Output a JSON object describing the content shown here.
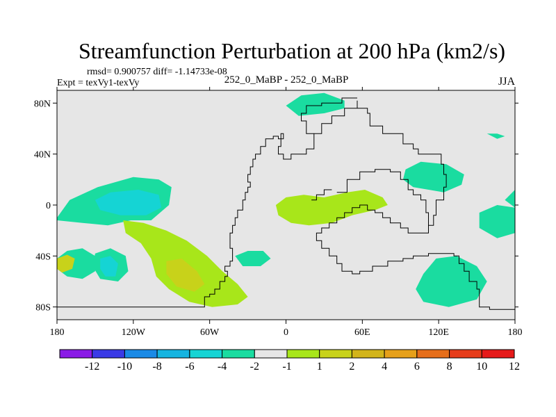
{
  "chart_data": {
    "type": "contour-map",
    "title": "Streamfunction Perturbation at 200 hPa (km2/s)",
    "stats": "rmsd= 0.900757 diff= -1.14733e-08",
    "experiment": "Expt = texVy1-texVy",
    "subtitle": "252_0_MaBP - 252_0_MaBP",
    "season": "JJA",
    "x_axis": {
      "range": [
        -180,
        180
      ],
      "ticks": [
        {
          "value": -180,
          "label": "180"
        },
        {
          "value": -120,
          "label": "120W"
        },
        {
          "value": -60,
          "label": "60W"
        },
        {
          "value": 0,
          "label": "0"
        },
        {
          "value": 60,
          "label": "60E"
        },
        {
          "value": 120,
          "label": "120E"
        },
        {
          "value": 180,
          "label": "180"
        }
      ]
    },
    "y_axis": {
      "range": [
        -90,
        90
      ],
      "ticks": [
        {
          "value": 80,
          "label": "80N"
        },
        {
          "value": 40,
          "label": "40N"
        },
        {
          "value": 0,
          "label": "0"
        },
        {
          "value": -40,
          "label": "40S"
        },
        {
          "value": -80,
          "label": "80S"
        }
      ]
    },
    "colorbar": {
      "colors": [
        "#8a1ae6",
        "#3a3ae6",
        "#1a8ae6",
        "#15b4e0",
        "#15d4d4",
        "#1adca0",
        "#e6e6e6",
        "#a8e61a",
        "#c8d21a",
        "#d2b41a",
        "#e6a01a",
        "#e66e1a",
        "#e63c1a",
        "#e61a1a"
      ],
      "labels": [
        "-12",
        "-10",
        "-8",
        "-6",
        "-4",
        "-2",
        "-1",
        "1",
        "2",
        "4",
        "6",
        "8",
        "10",
        "12"
      ]
    },
    "regions": [
      {
        "name": "sw-pacific-positive",
        "color": "#1adca0",
        "points": [
          [
            -180,
            -42
          ],
          [
            -172,
            -36
          ],
          [
            -160,
            -34
          ],
          [
            -150,
            -40
          ],
          [
            -150,
            -52
          ],
          [
            -160,
            -58
          ],
          [
            -172,
            -56
          ],
          [
            -180,
            -50
          ]
        ]
      },
      {
        "name": "sw-pacific-core",
        "color": "#c8d21a",
        "points": [
          [
            -180,
            -42
          ],
          [
            -172,
            -39
          ],
          [
            -166,
            -42
          ],
          [
            -168,
            -50
          ],
          [
            -176,
            -53
          ],
          [
            -180,
            -50
          ]
        ]
      },
      {
        "name": "south-pacific-trough",
        "color": "#1adca0",
        "points": [
          [
            -150,
            -38
          ],
          [
            -138,
            -34
          ],
          [
            -126,
            -40
          ],
          [
            -124,
            -52
          ],
          [
            -132,
            -60
          ],
          [
            -146,
            -58
          ],
          [
            -152,
            -48
          ]
        ]
      },
      {
        "name": "south-pacific-trough-core",
        "color": "#15d4d4",
        "points": [
          [
            -146,
            -42
          ],
          [
            -138,
            -40
          ],
          [
            -132,
            -46
          ],
          [
            -134,
            -56
          ],
          [
            -142,
            -56
          ],
          [
            -146,
            -50
          ]
        ]
      },
      {
        "name": "equatorial-pacific-band",
        "color": "#1adca0",
        "points": [
          [
            -180,
            -10
          ],
          [
            -170,
            4
          ],
          [
            -148,
            14
          ],
          [
            -120,
            22
          ],
          [
            -100,
            20
          ],
          [
            -90,
            14
          ],
          [
            -92,
            0
          ],
          [
            -106,
            -12
          ],
          [
            -122,
            -12
          ],
          [
            -140,
            -16
          ],
          [
            -160,
            -14
          ],
          [
            -180,
            -12
          ]
        ]
      },
      {
        "name": "equatorial-pacific-core",
        "color": "#15d4d4",
        "points": [
          [
            -150,
            4
          ],
          [
            -138,
            10
          ],
          [
            -116,
            12
          ],
          [
            -100,
            8
          ],
          [
            -98,
            -2
          ],
          [
            -110,
            -8
          ],
          [
            -130,
            -8
          ],
          [
            -146,
            -4
          ]
        ]
      },
      {
        "name": "south-america-ridge",
        "color": "#a8e61a",
        "points": [
          [
            -128,
            -12
          ],
          [
            -112,
            -14
          ],
          [
            -94,
            -20
          ],
          [
            -78,
            -28
          ],
          [
            -62,
            -40
          ],
          [
            -50,
            -52
          ],
          [
            -38,
            -62
          ],
          [
            -30,
            -72
          ],
          [
            -38,
            -78
          ],
          [
            -58,
            -80
          ],
          [
            -76,
            -76
          ],
          [
            -92,
            -66
          ],
          [
            -102,
            -56
          ],
          [
            -106,
            -42
          ],
          [
            -114,
            -30
          ],
          [
            -126,
            -22
          ]
        ]
      },
      {
        "name": "south-america-core",
        "color": "#c8d21a",
        "points": [
          [
            -94,
            -44
          ],
          [
            -82,
            -42
          ],
          [
            -70,
            -52
          ],
          [
            -64,
            -62
          ],
          [
            -72,
            -68
          ],
          [
            -86,
            -64
          ],
          [
            -94,
            -54
          ]
        ]
      },
      {
        "name": "south-atlantic-low",
        "color": "#1adca0",
        "points": [
          [
            -40,
            -40
          ],
          [
            -30,
            -36
          ],
          [
            -18,
            -36
          ],
          [
            -12,
            -42
          ],
          [
            -20,
            -48
          ],
          [
            -34,
            -48
          ]
        ]
      },
      {
        "name": "africa-ridge",
        "color": "#a8e61a",
        "points": [
          [
            -8,
            0
          ],
          [
            0,
            6
          ],
          [
            14,
            8
          ],
          [
            30,
            6
          ],
          [
            48,
            10
          ],
          [
            62,
            12
          ],
          [
            76,
            6
          ],
          [
            80,
            0
          ],
          [
            70,
            -4
          ],
          [
            52,
            -8
          ],
          [
            36,
            -14
          ],
          [
            18,
            -16
          ],
          [
            4,
            -14
          ],
          [
            -6,
            -8
          ]
        ]
      },
      {
        "name": "arctic-trough",
        "color": "#1adca0",
        "points": [
          [
            0,
            78
          ],
          [
            12,
            86
          ],
          [
            30,
            88
          ],
          [
            46,
            82
          ],
          [
            46,
            76
          ],
          [
            30,
            72
          ],
          [
            10,
            70
          ]
        ]
      },
      {
        "name": "asia-trough",
        "color": "#1adca0",
        "points": [
          [
            94,
            28
          ],
          [
            106,
            34
          ],
          [
            126,
            32
          ],
          [
            140,
            24
          ],
          [
            138,
            16
          ],
          [
            124,
            10
          ],
          [
            100,
            14
          ],
          [
            92,
            20
          ]
        ]
      },
      {
        "name": "west-pacific-trough",
        "color": "#1adca0",
        "points": [
          [
            152,
            -6
          ],
          [
            166,
            0
          ],
          [
            180,
            -2
          ],
          [
            180,
            -22
          ],
          [
            166,
            -26
          ],
          [
            152,
            -18
          ]
        ]
      },
      {
        "name": "east-pacific-edge",
        "color": "#1adca0",
        "points": [
          [
            172,
            4
          ],
          [
            180,
            12
          ],
          [
            180,
            -2
          ]
        ]
      },
      {
        "name": "australia-trough",
        "color": "#1adca0",
        "points": [
          [
            108,
            -54
          ],
          [
            118,
            -42
          ],
          [
            134,
            -40
          ],
          [
            150,
            -48
          ],
          [
            158,
            -60
          ],
          [
            150,
            -74
          ],
          [
            128,
            -80
          ],
          [
            108,
            -76
          ],
          [
            102,
            -66
          ]
        ]
      },
      {
        "name": "kamchatka-sliver",
        "color": "#1adca0",
        "points": [
          [
            158,
            56
          ],
          [
            166,
            56
          ],
          [
            172,
            54
          ],
          [
            166,
            52
          ]
        ]
      },
      {
        "name": "equatorial-thin-sliver",
        "color": "#1adca0",
        "points": [
          [
            -118,
            -18
          ],
          [
            -108,
            -20
          ],
          [
            -98,
            -22
          ],
          [
            -108,
            -20
          ]
        ]
      }
    ],
    "outline_paths": [
      [
        [
          -180,
          -80
        ],
        [
          -65,
          -80
        ],
        [
          -64,
          -72
        ],
        [
          -60,
          -70
        ],
        [
          -56,
          -66
        ],
        [
          -52,
          -60
        ],
        [
          -48,
          -56
        ],
        [
          -46,
          -52
        ],
        [
          -48,
          -48
        ],
        [
          -44,
          -44
        ],
        [
          -42,
          -40
        ],
        [
          -42,
          -34
        ],
        [
          -44,
          -28
        ],
        [
          -44,
          -22
        ],
        [
          -42,
          -16
        ],
        [
          -40,
          -10
        ],
        [
          -38,
          -4
        ],
        [
          -34,
          0
        ],
        [
          -34,
          4
        ],
        [
          -32,
          10
        ],
        [
          -30,
          14
        ],
        [
          -28,
          18
        ],
        [
          -30,
          24
        ],
        [
          -28,
          30
        ],
        [
          -26,
          36
        ],
        [
          -24,
          40
        ],
        [
          -20,
          46
        ],
        [
          -16,
          52
        ],
        [
          -10,
          54
        ],
        [
          -6,
          52
        ],
        [
          -4,
          56
        ],
        [
          -2,
          52
        ],
        [
          -4,
          46
        ],
        [
          -6,
          40
        ],
        [
          -2,
          36
        ],
        [
          4,
          40
        ],
        [
          10,
          40
        ],
        [
          16,
          44
        ],
        [
          22,
          56
        ],
        [
          28,
          64
        ],
        [
          36,
          70
        ],
        [
          46,
          76
        ],
        [
          56,
          82
        ],
        [
          56,
          76
        ],
        [
          64,
          72
        ],
        [
          66,
          62
        ],
        [
          76,
          56
        ],
        [
          92,
          48
        ],
        [
          100,
          44
        ],
        [
          104,
          40
        ],
        [
          114,
          40
        ],
        [
          122,
          32
        ],
        [
          124,
          24
        ],
        [
          126,
          14
        ],
        [
          124,
          4
        ],
        [
          118,
          -8
        ],
        [
          116,
          -16
        ],
        [
          112,
          -22
        ],
        [
          104,
          -22
        ],
        [
          96,
          -18
        ],
        [
          90,
          -14
        ],
        [
          82,
          -10
        ],
        [
          76,
          -6
        ],
        [
          70,
          -4
        ],
        [
          64,
          0
        ],
        [
          58,
          -2
        ],
        [
          52,
          -6
        ],
        [
          46,
          -10
        ],
        [
          40,
          -14
        ],
        [
          34,
          -18
        ],
        [
          28,
          -22
        ],
        [
          24,
          -28
        ],
        [
          28,
          -34
        ],
        [
          34,
          -40
        ],
        [
          40,
          -46
        ],
        [
          44,
          -52
        ],
        [
          52,
          -54
        ],
        [
          58,
          -52
        ],
        [
          68,
          -48
        ],
        [
          80,
          -44
        ],
        [
          92,
          -42
        ],
        [
          100,
          -40
        ],
        [
          112,
          -38
        ],
        [
          124,
          -38
        ],
        [
          132,
          -40
        ],
        [
          136,
          -46
        ],
        [
          140,
          -52
        ],
        [
          144,
          -60
        ],
        [
          150,
          -66
        ],
        [
          152,
          -74
        ],
        [
          152,
          -80
        ],
        [
          160,
          -82
        ],
        [
          180,
          -82
        ]
      ],
      [
        [
          22,
          56
        ],
        [
          16,
          66
        ],
        [
          12,
          72
        ],
        [
          16,
          78
        ],
        [
          28,
          80
        ],
        [
          44,
          84
        ],
        [
          56,
          84
        ]
      ],
      [
        [
          40,
          10
        ],
        [
          48,
          20
        ],
        [
          58,
          26
        ],
        [
          70,
          28
        ],
        [
          82,
          26
        ],
        [
          90,
          20
        ],
        [
          96,
          12
        ],
        [
          100,
          8
        ],
        [
          106,
          4
        ],
        [
          110,
          -6
        ],
        [
          112,
          -16
        ]
      ],
      [
        [
          20,
          4
        ],
        [
          24,
          8
        ],
        [
          30,
          12
        ],
        [
          36,
          12
        ]
      ]
    ]
  }
}
